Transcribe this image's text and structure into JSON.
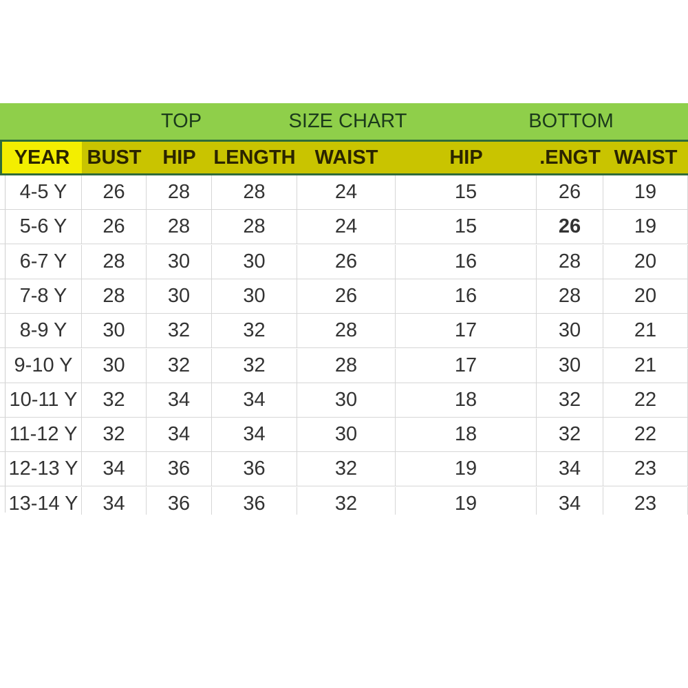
{
  "title_row": {
    "top": "TOP",
    "title": "SIZE CHART",
    "bottom": "BOTTOM"
  },
  "columns": [
    "YEAR",
    "BUST",
    "HIP",
    "LENGTH",
    "WAIST",
    "HIP",
    ".ENGT",
    "WAIST"
  ],
  "rows": [
    [
      "4-5 Y",
      "26",
      "28",
      "28",
      "24",
      "15",
      "26",
      "19"
    ],
    [
      "5-6 Y",
      "26",
      "28",
      "28",
      "24",
      "15",
      "26",
      "19"
    ],
    [
      "6-7 Y",
      "28",
      "30",
      "30",
      "26",
      "16",
      "28",
      "20"
    ],
    [
      "7-8 Y",
      "28",
      "30",
      "30",
      "26",
      "16",
      "28",
      "20"
    ],
    [
      "8-9 Y",
      "30",
      "32",
      "32",
      "28",
      "17",
      "30",
      "21"
    ],
    [
      "9-10 Y",
      "30",
      "32",
      "32",
      "28",
      "17",
      "30",
      "21"
    ],
    [
      "10-11 Y",
      "32",
      "34",
      "34",
      "30",
      "18",
      "32",
      "22"
    ],
    [
      "11-12 Y",
      "32",
      "34",
      "34",
      "30",
      "18",
      "32",
      "22"
    ],
    [
      "12-13 Y",
      "34",
      "36",
      "36",
      "32",
      "19",
      "34",
      "23"
    ],
    [
      "13-14 Y",
      "34",
      "36",
      "36",
      "32",
      "19",
      "34",
      "23"
    ]
  ],
  "colors": {
    "title_green": "#8fcf4a",
    "header_olive": "#c9c400",
    "year_yellow": "#f3ee00",
    "border_green": "#2f6b3a"
  }
}
